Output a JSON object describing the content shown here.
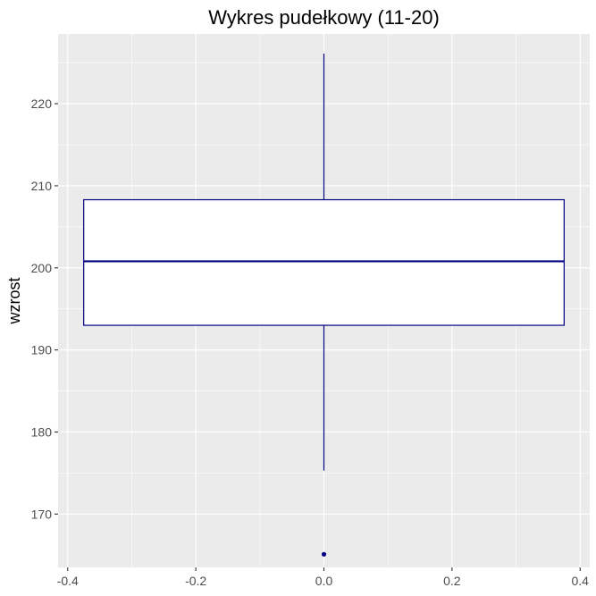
{
  "chart_data": {
    "type": "boxplot",
    "title": "Wykres pudełkowy (11-20)",
    "xlabel": "",
    "ylabel": "wzrost",
    "xlim": [
      -0.415,
      0.415
    ],
    "ylim": [
      163.5,
      228.5
    ],
    "x_ticks": [
      -0.4,
      -0.2,
      0.0,
      0.2,
      0.4
    ],
    "x_tick_labels": [
      "-0.4",
      "-0.2",
      "0.0",
      "0.2",
      "0.4"
    ],
    "y_ticks": [
      170,
      180,
      190,
      200,
      210,
      220
    ],
    "y_tick_labels": [
      "170",
      "180",
      "190",
      "200",
      "210",
      "220"
    ],
    "grid": true,
    "box": {
      "x": 0.0,
      "box_left": -0.375,
      "box_right": 0.375,
      "whisker_low": 175.3,
      "q1": 193.0,
      "median": 200.8,
      "q3": 208.3,
      "whisker_high": 226.1,
      "outliers": [
        165.1
      ]
    },
    "colors": {
      "panel_background": "#ebebeb",
      "grid_major": "#ffffff",
      "box_fill": "#ffffff",
      "box_line": "#000080",
      "outlier": "#000080"
    }
  }
}
